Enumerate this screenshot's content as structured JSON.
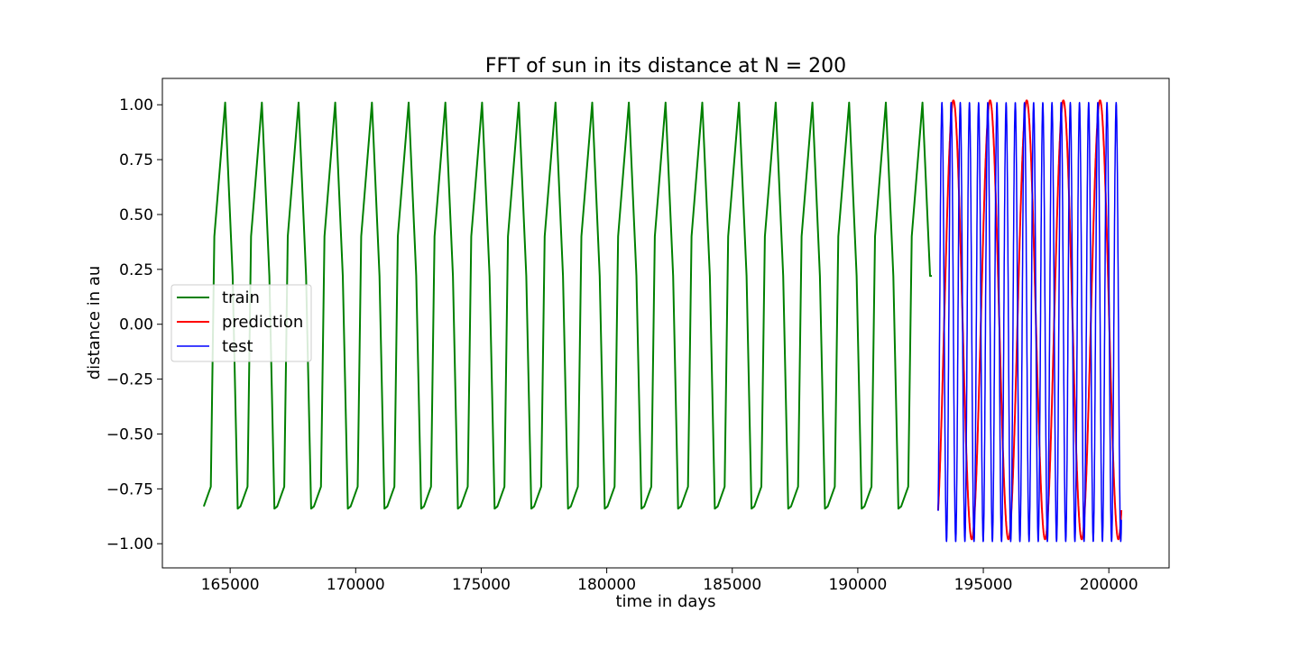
{
  "chart_data": {
    "type": "line",
    "title": "FFT of sun in its distance at N = 200",
    "xlabel": "time in days",
    "ylabel": "distance in au",
    "xlim": [
      162300,
      202400
    ],
    "ylim": [
      -1.11,
      1.12
    ],
    "xticks": [
      165000,
      170000,
      175000,
      180000,
      185000,
      190000,
      195000,
      200000
    ],
    "yticks": [
      -1.0,
      -0.75,
      -0.5,
      -0.25,
      0.0,
      0.25,
      0.5,
      0.75,
      1.0
    ],
    "xtick_labels": [
      "165000",
      "170000",
      "175000",
      "180000",
      "185000",
      "190000",
      "195000",
      "200000"
    ],
    "ytick_labels": [
      "−1.00",
      "−0.75",
      "−0.50",
      "−0.25",
      "0.00",
      "0.25",
      "0.50",
      "0.75",
      "1.00"
    ],
    "grid": false,
    "legend": {
      "placement": "center-left",
      "entries": [
        "train",
        "prediction",
        "test"
      ]
    },
    "series": [
      {
        "name": "train",
        "color": "#008000",
        "x_range": [
          163950,
          192950
        ],
        "period_days": 1462,
        "description_values": {
          "min": -0.85,
          "max": 1.01,
          "first": -0.83,
          "last": 0.22
        }
      },
      {
        "name": "prediction",
        "color": "#ff0000",
        "x_range": [
          193200,
          200500
        ],
        "period_days": 1460,
        "description_values": {
          "min": -0.98,
          "max": 1.02,
          "first": -0.85,
          "last": -0.85
        }
      },
      {
        "name": "test",
        "color": "#0000ff",
        "x_range": [
          193200,
          200500
        ],
        "period_days": 365.25,
        "description_values": {
          "min": -0.99,
          "max": 1.01,
          "first": -0.85,
          "last": -0.99
        }
      }
    ]
  }
}
